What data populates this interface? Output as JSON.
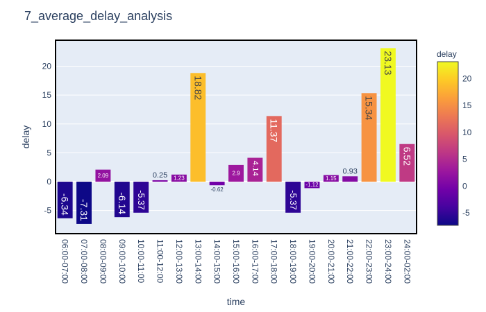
{
  "chart_data": {
    "type": "bar",
    "title": "7_average_delay_analysis",
    "xlabel": "time",
    "ylabel": "delay",
    "ylim": [
      -9,
      24.5
    ],
    "yticks": [
      -5,
      0,
      5,
      10,
      15,
      20
    ],
    "grid": true,
    "categories": [
      "06:00-07:00",
      "07:00-08:00",
      "08:00-09:00",
      "09:00-10:00",
      "10:00-11:00",
      "11:00-12:00",
      "12:00-13:00",
      "13:00-14:00",
      "14:00-15:00",
      "15:00-16:00",
      "16:00-17:00",
      "17:00-18:00",
      "18:00-19:00",
      "19:00-20:00",
      "20:00-21:00",
      "21:00-22:00",
      "22:00-23:00",
      "23:00-24:00",
      "24:00-02:00"
    ],
    "values": [
      -6.34,
      -7.31,
      2.09,
      -6.14,
      -5.37,
      0.25,
      1.23,
      18.82,
      -0.62,
      2.9,
      4.14,
      11.37,
      -5.37,
      -1.12,
      1.15,
      0.93,
      15.34,
      23.13,
      6.52
    ],
    "labels": [
      "-6.34",
      "-7.31",
      "2.09",
      "-6.14",
      "-5.37",
      "0.25",
      "1.23",
      "18.82",
      "-0.62",
      "2.9",
      "4.14",
      "11.37",
      "-5.37",
      "-1.12",
      "1.15",
      "0.93",
      "15.34",
      "23.13",
      "6.52"
    ],
    "colorbar": {
      "title": "delay",
      "ticks": [
        -5,
        0,
        5,
        10,
        15,
        20
      ],
      "range": [
        -7.31,
        23.13
      ],
      "colorscale": "plasma"
    }
  }
}
